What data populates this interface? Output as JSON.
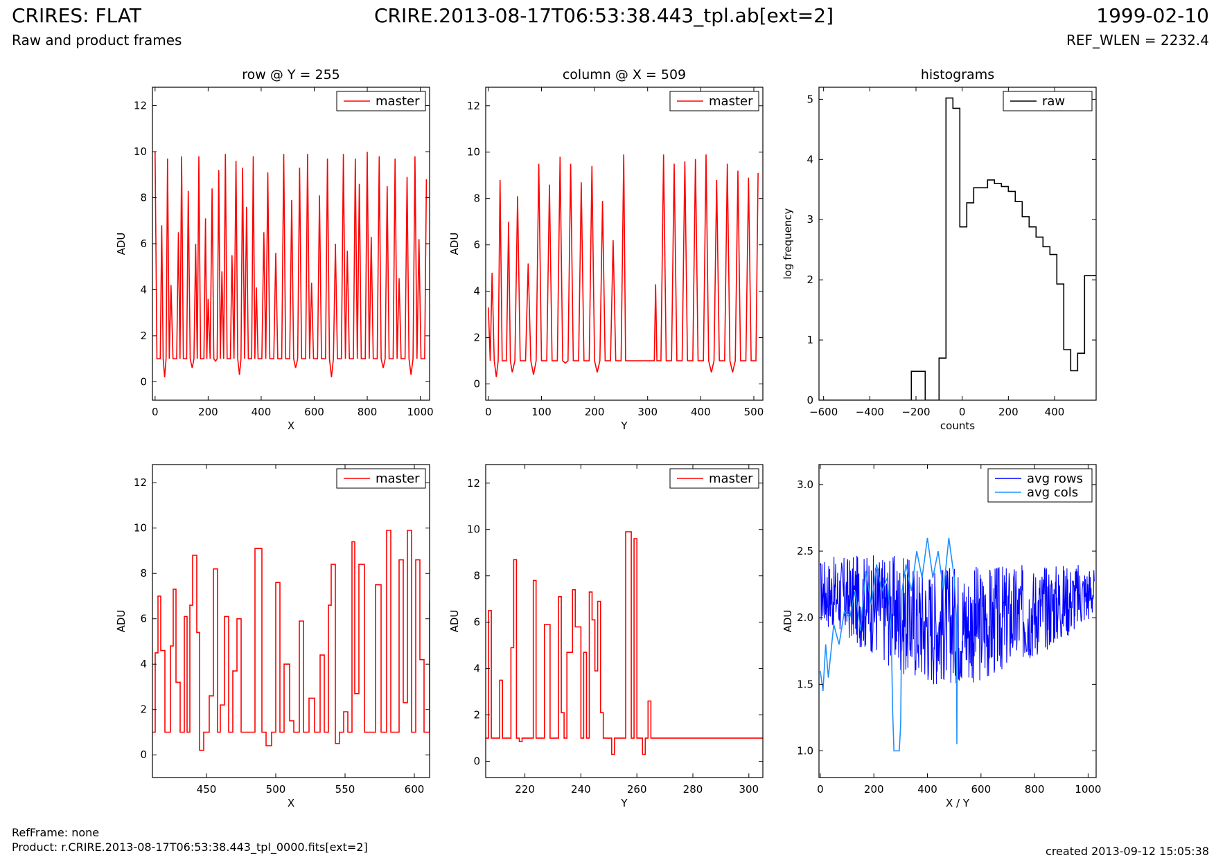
{
  "header": {
    "title_left": "CRIRES: FLAT",
    "subtitle_left": "Raw and product frames",
    "title_center": "CRIRE.2013-08-17T06:53:38.443_tpl.ab[ext=2]",
    "date_right": "1999-02-10",
    "ref_wlen": "REF_WLEN = 2232.4"
  },
  "footer": {
    "ref_frame": "RefFrame: none",
    "product": "Product: r.CRIRE.2013-08-17T06:53:38.443_tpl_0000.fits[ext=2]",
    "created": "created 2013-09-12 15:05:38"
  },
  "colors": {
    "master": "#ff0000",
    "raw": "#000000",
    "avg_rows": "#0000ff",
    "avg_cols": "#1e90ff"
  },
  "chart_data": [
    {
      "type": "line",
      "title": "row @ Y = 255",
      "xlabel": "X",
      "ylabel": "ADU",
      "xlim": [
        -10,
        1035
      ],
      "ylim": [
        -0.8,
        12.8
      ],
      "xticks": [
        0,
        200,
        400,
        600,
        800,
        1000
      ],
      "yticks": [
        0,
        2,
        4,
        6,
        8,
        10,
        12
      ],
      "legend": "top-right",
      "series": [
        {
          "name": "master",
          "color": "#ff0000",
          "x": [
            0,
            14,
            25,
            36,
            47,
            60,
            75,
            88,
            100,
            113,
            125,
            140,
            153,
            165,
            178,
            190,
            200,
            215,
            228,
            240,
            252,
            265,
            278,
            290,
            305,
            318,
            330,
            345,
            358,
            370,
            382,
            395,
            410,
            425,
            440,
            455,
            470,
            485,
            500,
            515,
            530,
            545,
            560,
            575,
            590,
            605,
            620,
            635,
            650,
            665,
            680,
            695,
            710,
            725,
            740,
            755,
            770,
            785,
            800,
            815,
            830,
            845,
            860,
            875,
            890,
            905,
            920,
            935,
            950,
            965,
            980,
            995,
            1010,
            1023
          ],
          "y": [
            10,
            1,
            6.8,
            0.2,
            9.7,
            4.2,
            1,
            6.5,
            9.8,
            1,
            8.3,
            0.6,
            6,
            9.8,
            1,
            7.1,
            3.6,
            8.4,
            0.9,
            9.2,
            4.8,
            9.9,
            1,
            5.5,
            9.6,
            0.3,
            9.3,
            7.6,
            1,
            9.8,
            4.1,
            1,
            6.5,
            9.1,
            1,
            5.6,
            1,
            9.9,
            1,
            7.9,
            0.6,
            9.3,
            1,
            9.9,
            4.3,
            1,
            8.1,
            1,
            9.7,
            0.2,
            6,
            1,
            9.9,
            5.7,
            1,
            9.7,
            8.6,
            1,
            10,
            6.3,
            1,
            9.8,
            0.6,
            8.5,
            1,
            9.7,
            4.5,
            1,
            8.9,
            0.3,
            9.8,
            6.2,
            1,
            8.8
          ]
        }
      ]
    },
    {
      "type": "line",
      "title": "column @ X = 509",
      "xlabel": "Y",
      "ylabel": "ADU",
      "xlim": [
        -5,
        517
      ],
      "ylim": [
        -0.7,
        12.8
      ],
      "xticks": [
        0,
        100,
        200,
        300,
        400,
        500
      ],
      "yticks": [
        0,
        2,
        4,
        6,
        8,
        10,
        12
      ],
      "legend": "top-right",
      "series": [
        {
          "name": "master",
          "color": "#ff0000",
          "x": [
            0,
            7,
            15,
            22,
            30,
            38,
            45,
            55,
            65,
            75,
            85,
            95,
            105,
            115,
            125,
            135,
            145,
            155,
            165,
            175,
            185,
            195,
            205,
            215,
            225,
            235,
            245,
            255,
            262,
            270,
            280,
            290,
            300,
            310,
            315,
            320,
            330,
            340,
            350,
            360,
            370,
            380,
            390,
            400,
            410,
            420,
            430,
            440,
            450,
            460,
            470,
            480,
            490,
            500,
            508
          ],
          "y": [
            3.3,
            4.8,
            0.3,
            8.8,
            1,
            7,
            0.5,
            8.1,
            1,
            5.2,
            0.4,
            9.5,
            1,
            8.6,
            1,
            9.8,
            0.9,
            9.5,
            1,
            8.7,
            1,
            9.4,
            0.5,
            7.9,
            1,
            6.2,
            1,
            9.9,
            1,
            1,
            1,
            1,
            1,
            1,
            4.3,
            1,
            9.9,
            1,
            9.5,
            1,
            9.6,
            1,
            9.7,
            1,
            9.9,
            0.5,
            8.8,
            1,
            9.5,
            0.5,
            9.2,
            1,
            8.9,
            1,
            9.1
          ]
        }
      ]
    },
    {
      "type": "line",
      "title": "histograms",
      "xlabel": "counts",
      "ylabel": "log frequency",
      "xlim": [
        -620,
        580
      ],
      "ylim": [
        0,
        5.2
      ],
      "xticks": [
        -600,
        -400,
        -200,
        0,
        200,
        400
      ],
      "yticks": [
        0,
        1,
        2,
        3,
        4,
        5
      ],
      "legend": "top-right",
      "series": [
        {
          "name": "raw",
          "color": "#000000",
          "step": "post",
          "x": [
            -620,
            -220,
            -160,
            -100,
            -70,
            -40,
            -10,
            20,
            50,
            110,
            140,
            170,
            200,
            230,
            260,
            290,
            320,
            350,
            380,
            410,
            440,
            470,
            500,
            530,
            560,
            580
          ],
          "y": [
            0,
            0.48,
            0,
            0.7,
            5.02,
            4.85,
            2.88,
            3.28,
            3.53,
            3.66,
            3.6,
            3.55,
            3.47,
            3.3,
            3.05,
            2.88,
            2.71,
            2.55,
            2.42,
            1.93,
            0.84,
            0.49,
            0.78,
            2.07,
            2.07,
            2.07
          ]
        }
      ]
    },
    {
      "type": "line",
      "xlabel": "X",
      "ylabel": "ADU",
      "xlim": [
        411,
        611
      ],
      "ylim": [
        -1,
        12.8
      ],
      "xticks": [
        450,
        500,
        550,
        600
      ],
      "yticks": [
        0,
        2,
        4,
        6,
        8,
        10,
        12
      ],
      "legend": "top-right",
      "series": [
        {
          "name": "master",
          "color": "#ff0000",
          "step": "post",
          "x": [
            411,
            413,
            415,
            417,
            420,
            424,
            426,
            428,
            431,
            434,
            436,
            438,
            440,
            443,
            445,
            448,
            452,
            455,
            458,
            460,
            463,
            466,
            469,
            472,
            475,
            478,
            482,
            485,
            490,
            493,
            497,
            500,
            503,
            506,
            510,
            513,
            517,
            520,
            524,
            528,
            532,
            535,
            538,
            540,
            543,
            546,
            549,
            552,
            555,
            557,
            560,
            564,
            568,
            572,
            576,
            580,
            583,
            586,
            589,
            592,
            595,
            598,
            601,
            604,
            607,
            611
          ],
          "y": [
            1,
            4.5,
            7,
            4.6,
            1,
            4.8,
            7.3,
            3.2,
            1,
            6.1,
            1,
            6.6,
            8.8,
            5.4,
            0.2,
            1,
            2.6,
            8.2,
            1,
            2.2,
            6.1,
            1,
            3.7,
            6,
            1,
            1,
            1,
            9.1,
            1,
            0.4,
            1,
            7.6,
            1,
            4,
            1.5,
            1,
            5.9,
            1,
            2.5,
            1,
            4.4,
            1,
            6.6,
            8.4,
            0.5,
            1,
            1.9,
            1,
            9.4,
            2.7,
            8.4,
            1,
            1,
            7.5,
            1,
            9.9,
            1,
            1,
            8.6,
            2.3,
            9.9,
            1,
            8.6,
            4.2,
            1,
            6.8
          ]
        }
      ]
    },
    {
      "type": "line",
      "xlabel": "Y",
      "ylabel": "ADU",
      "xlim": [
        206,
        305
      ],
      "ylim": [
        -0.7,
        12.8
      ],
      "xticks": [
        220,
        240,
        260,
        280,
        300
      ],
      "yticks": [
        0,
        2,
        4,
        6,
        8,
        10,
        12
      ],
      "legend": "top-right",
      "series": [
        {
          "name": "master",
          "color": "#ff0000",
          "step": "post",
          "x": [
            206,
            207,
            208,
            210,
            211,
            212,
            215,
            216,
            217,
            218,
            219,
            220,
            223,
            224,
            226,
            227,
            229,
            230,
            232,
            233,
            234,
            235,
            237,
            238,
            240,
            241,
            242,
            243,
            244,
            245,
            246,
            247,
            248,
            250,
            251,
            252,
            255,
            256,
            258,
            259,
            260,
            262,
            263,
            264,
            265,
            266,
            267,
            305
          ],
          "y": [
            1,
            6.5,
            1,
            1,
            3.5,
            1,
            4.9,
            8.7,
            1,
            0.85,
            1,
            1,
            7.8,
            1,
            1,
            5.9,
            1,
            1,
            7.1,
            2.1,
            1,
            4.7,
            7.4,
            5.8,
            1,
            4.7,
            1,
            7.3,
            6.1,
            3.9,
            6.9,
            2.1,
            1,
            1,
            0.3,
            1,
            1,
            9.9,
            1,
            9.6,
            1,
            0.3,
            1,
            2.6,
            1,
            1,
            1,
            1
          ]
        }
      ]
    },
    {
      "type": "line",
      "xlabel": "X / Y",
      "ylabel": "ADU",
      "xlim": [
        -5,
        1030
      ],
      "ylim": [
        0.8,
        3.15
      ],
      "xticks": [
        0,
        200,
        400,
        600,
        800,
        1000
      ],
      "yticks": [
        1.0,
        1.5,
        2.0,
        2.5,
        3.0
      ],
      "legend": "top-right",
      "series": [
        {
          "name": "avg rows",
          "color": "#0000ff",
          "x_range": [
            0,
            1023
          ],
          "band_center": [
            [
              0,
              2.2
            ],
            [
              200,
              2.1
            ],
            [
              400,
              1.95
            ],
            [
              600,
              1.95
            ],
            [
              800,
              2.05
            ],
            [
              1023,
              2.2
            ]
          ],
          "band_halfwidth": [
            [
              0,
              0.25
            ],
            [
              300,
              0.45
            ],
            [
              600,
              0.45
            ],
            [
              900,
              0.3
            ],
            [
              1023,
              0.2
            ]
          ]
        },
        {
          "name": "avg cols",
          "color": "#1e90ff",
          "x": [
            0,
            10,
            20,
            30,
            40,
            50,
            70,
            90,
            110,
            130,
            150,
            170,
            190,
            210,
            230,
            250,
            265,
            270,
            275,
            285,
            295,
            300,
            305,
            320,
            340,
            360,
            380,
            400,
            420,
            440,
            460,
            480,
            500,
            508,
            510,
            512
          ],
          "y": [
            1.6,
            1.45,
            1.8,
            1.55,
            1.75,
            1.95,
            1.8,
            2.05,
            2.0,
            2.2,
            1.9,
            2.35,
            2.1,
            2.4,
            2.2,
            2.3,
            1.9,
            1.3,
            1.0,
            1.0,
            1.0,
            1.2,
            2.2,
            2.4,
            2.2,
            2.5,
            2.3,
            2.6,
            2.3,
            2.5,
            2.2,
            2.6,
            2.3,
            2.0,
            1.05,
            2.1
          ]
        }
      ]
    }
  ]
}
